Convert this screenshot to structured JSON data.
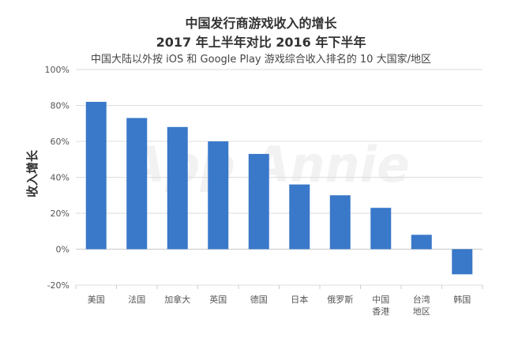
{
  "chart_data": {
    "type": "bar",
    "title": "中国发行商游戏收入的增长",
    "subtitle": "2017 年上半年对比 2016 年下半年",
    "caption": "中国大陆以外按 iOS 和 Google Play 游戏综合收入排名的 10 大国家/地区",
    "ylabel": "收入增长",
    "xlabel": "",
    "categories": [
      "美国",
      "法国",
      "加拿大",
      "英国",
      "德国",
      "日本",
      "俄罗斯",
      "中国\n香港",
      "台湾\n地区",
      "韩国"
    ],
    "values": [
      82,
      73,
      68,
      60,
      53,
      36,
      30,
      23,
      8,
      -14
    ],
    "ylim": [
      -20,
      100
    ],
    "yticks": [
      "-20%",
      "0%",
      "20%",
      "40%",
      "60%",
      "80%",
      "100%"
    ],
    "grid": true,
    "bar_color": "#3a78c9",
    "watermark": "App Annie"
  }
}
